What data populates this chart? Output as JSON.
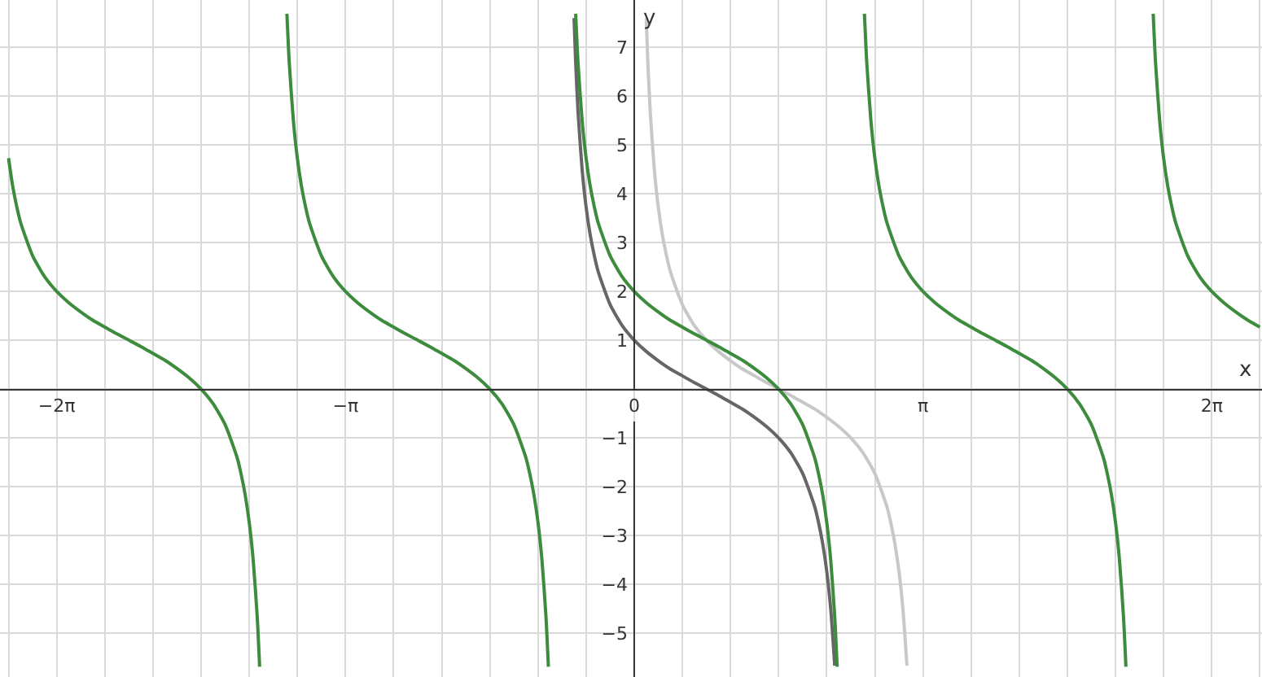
{
  "chart_data": {
    "type": "line",
    "xlabel": "x",
    "ylabel": "y",
    "xlim": [
      -6.9,
      6.83
    ],
    "ylim": [
      -5.9,
      7.97
    ],
    "xticks": [
      {
        "value": -6.8068,
        "label": null
      },
      {
        "value": -6.2832,
        "label": "−2π"
      },
      {
        "value": -5.7596,
        "label": null
      },
      {
        "value": -5.236,
        "label": null
      },
      {
        "value": -4.7124,
        "label": null
      },
      {
        "value": -4.1888,
        "label": null
      },
      {
        "value": -3.6652,
        "label": null
      },
      {
        "value": -3.1416,
        "label": "−π"
      },
      {
        "value": -2.618,
        "label": null
      },
      {
        "value": -2.0944,
        "label": null
      },
      {
        "value": -1.5708,
        "label": null
      },
      {
        "value": -1.0472,
        "label": null
      },
      {
        "value": -0.5236,
        "label": null
      },
      {
        "value": 0,
        "label": "0"
      },
      {
        "value": 0.5236,
        "label": null
      },
      {
        "value": 1.0472,
        "label": null
      },
      {
        "value": 1.5708,
        "label": null
      },
      {
        "value": 2.0944,
        "label": null
      },
      {
        "value": 2.618,
        "label": null
      },
      {
        "value": 3.1416,
        "label": "π"
      },
      {
        "value": 3.6652,
        "label": null
      },
      {
        "value": 4.1888,
        "label": null
      },
      {
        "value": 4.7124,
        "label": null
      },
      {
        "value": 5.236,
        "label": null
      },
      {
        "value": 5.7596,
        "label": null
      },
      {
        "value": 6.2832,
        "label": "2π"
      },
      {
        "value": 6.8068,
        "label": null
      }
    ],
    "yticks": [
      -5,
      -4,
      -3,
      -2,
      -1,
      {
        "value": 0,
        "label": null
      },
      1,
      2,
      3,
      4,
      5,
      6,
      7
    ],
    "grid": true,
    "marker": "none",
    "line_style": "solid",
    "series": [
      {
        "color": "#c8c8c8",
        "x": [
          0.1309,
          0.1484,
          0.1745,
          0.2182,
          0.2618,
          0.3054,
          0.3491,
          0.3927,
          0.5236,
          0.6545,
          0.7854,
          0.9163,
          1.0472,
          1.1781,
          1.309,
          1.4399,
          1.5708,
          1.7017,
          1.8326,
          1.9635,
          2.0944,
          2.2253,
          2.3562,
          2.4871,
          2.618,
          2.7489,
          2.7925,
          2.8362,
          2.8798,
          2.9234,
          2.9671
        ],
        "values": [
          7.6,
          6.69,
          5.67,
          4.51,
          3.73,
          3.17,
          2.75,
          2.41,
          1.73,
          1.3,
          1.0,
          0.77,
          0.58,
          0.41,
          0.27,
          0.13,
          0.0,
          -0.13,
          -0.27,
          -0.41,
          -0.58,
          -0.77,
          -1.0,
          -1.3,
          -1.73,
          -2.41,
          -2.75,
          -3.17,
          -3.73,
          -4.51,
          -5.67
        ]
      },
      {
        "color": "#666666",
        "x": [
          -0.6545,
          -0.637,
          -0.6109,
          -0.5672,
          -0.5236,
          -0.48,
          -0.4363,
          -0.3927,
          -0.2618,
          -0.1309,
          0,
          0.1309,
          0.2618,
          0.3927,
          0.5236,
          0.6545,
          0.7854,
          0.9163,
          1.0472,
          1.1781,
          1.309,
          1.4399,
          1.5708,
          1.7017,
          1.8326,
          1.9635,
          2.0071,
          2.0508,
          2.0944,
          2.138,
          2.1817
        ],
        "values": [
          7.6,
          6.69,
          5.67,
          4.51,
          3.73,
          3.17,
          2.75,
          2.41,
          1.73,
          1.3,
          1.0,
          0.77,
          0.58,
          0.41,
          0.27,
          0.13,
          0.0,
          -0.13,
          -0.27,
          -0.41,
          -0.58,
          -0.77,
          -1.0,
          -1.3,
          -1.73,
          -2.41,
          -2.75,
          -3.17,
          -3.73,
          -4.51,
          -5.67
        ]
      },
      {
        "color": "#3d8b3d",
        "x": [
          -6.8068,
          -6.7632,
          -6.7195,
          -6.6759,
          -6.545,
          -6.4141,
          -6.2832,
          -6.1523,
          -6.0214,
          -5.8905,
          -5.7596,
          -5.6287,
          -5.4978,
          -5.3669,
          -5.236,
          -5.1051,
          -4.9742,
          -4.8433,
          -4.7124,
          -4.5815,
          -4.4506,
          -4.3197,
          -4.2761,
          -4.2324,
          -4.1888,
          -4.1452,
          -4.1015,
          -4.0754
        ],
        "values": [
          4.73,
          4.17,
          3.75,
          3.41,
          2.73,
          2.3,
          2.0,
          1.77,
          1.58,
          1.41,
          1.27,
          1.13,
          1.0,
          0.87,
          0.73,
          0.59,
          0.42,
          0.23,
          0.0,
          -0.3,
          -0.73,
          -1.41,
          -1.75,
          -2.17,
          -2.73,
          -3.51,
          -4.67,
          -5.69
        ]
      },
      {
        "color": "#3d8b3d",
        "x": [
          -3.7786,
          -3.7525,
          -3.7088,
          -3.6652,
          -3.6216,
          -3.5779,
          -3.5343,
          -3.4034,
          -3.2725,
          -3.1416,
          -3.0107,
          -2.8798,
          -2.7489,
          -2.618,
          -2.4871,
          -2.3562,
          -2.2253,
          -2.0944,
          -1.9635,
          -1.8326,
          -1.7017,
          -1.5708,
          -1.4399,
          -1.309,
          -1.1781,
          -1.1345,
          -1.0908,
          -1.0472,
          -1.0036,
          -0.9599,
          -0.9338
        ],
        "values": [
          7.69,
          6.67,
          5.51,
          4.73,
          4.17,
          3.75,
          3.41,
          2.73,
          2.3,
          2.0,
          1.77,
          1.58,
          1.41,
          1.27,
          1.13,
          1.0,
          0.87,
          0.73,
          0.59,
          0.42,
          0.23,
          0.0,
          -0.3,
          -0.73,
          -1.41,
          -1.75,
          -2.17,
          -2.73,
          -3.51,
          -4.67,
          -5.69
        ]
      },
      {
        "color": "#3d8b3d",
        "x": [
          -0.637,
          -0.6109,
          -0.5672,
          -0.5236,
          -0.48,
          -0.4363,
          -0.3927,
          -0.2618,
          -0.1309,
          0,
          0.1309,
          0.2618,
          0.3927,
          0.5236,
          0.6545,
          0.7854,
          0.9163,
          1.0472,
          1.1781,
          1.309,
          1.4399,
          1.5708,
          1.7017,
          1.8326,
          1.9635,
          2.0071,
          2.0508,
          2.0944,
          2.138,
          2.1817,
          2.2078
        ],
        "values": [
          7.69,
          6.67,
          5.51,
          4.73,
          4.17,
          3.75,
          3.41,
          2.73,
          2.3,
          2.0,
          1.77,
          1.58,
          1.41,
          1.27,
          1.13,
          1.0,
          0.87,
          0.73,
          0.59,
          0.42,
          0.23,
          0.0,
          -0.3,
          -0.73,
          -1.41,
          -1.75,
          -2.17,
          -2.73,
          -3.51,
          -4.67,
          -5.69
        ]
      },
      {
        "color": "#3d8b3d",
        "x": [
          2.5046,
          2.5307,
          2.5744,
          2.618,
          2.6616,
          2.7053,
          2.7489,
          2.8798,
          3.0107,
          3.1416,
          3.2725,
          3.4034,
          3.5343,
          3.6652,
          3.7961,
          3.927,
          4.0579,
          4.1888,
          4.3197,
          4.4506,
          4.5815,
          4.7124,
          4.8433,
          4.9742,
          5.1051,
          5.1487,
          5.1924,
          5.236,
          5.2796,
          5.3233,
          5.3494
        ],
        "values": [
          7.69,
          6.67,
          5.51,
          4.73,
          4.17,
          3.75,
          3.41,
          2.73,
          2.3,
          2.0,
          1.77,
          1.58,
          1.41,
          1.27,
          1.13,
          1.0,
          0.87,
          0.73,
          0.59,
          0.42,
          0.23,
          0.0,
          -0.3,
          -0.73,
          -1.41,
          -1.75,
          -2.17,
          -2.73,
          -3.51,
          -4.67,
          -5.69
        ]
      },
      {
        "color": "#3d8b3d",
        "x": [
          5.6462,
          5.6723,
          5.716,
          5.7596,
          5.8032,
          5.8469,
          5.8905,
          6.0214,
          6.1523,
          6.2832,
          6.4141,
          6.545,
          6.6759,
          6.8068
        ],
        "values": [
          7.69,
          6.67,
          5.51,
          4.73,
          4.17,
          3.75,
          3.41,
          2.73,
          2.3,
          2.0,
          1.77,
          1.58,
          1.41,
          1.27
        ]
      }
    ]
  }
}
